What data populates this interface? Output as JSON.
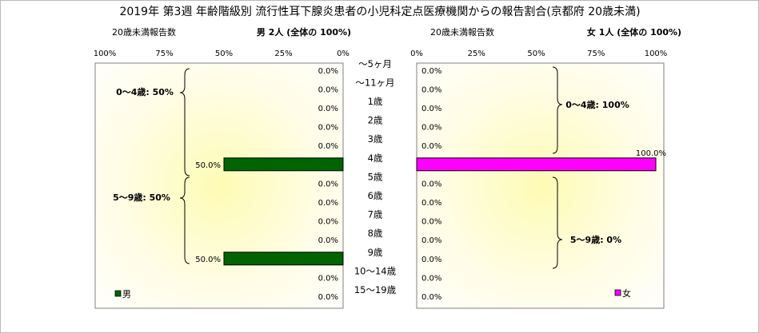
{
  "title": "2019年 第3週 年齢階級別 流行性耳下腺炎患者の小児科定点医療機関からの報告割合(京都府 20歳未満)",
  "left_panel": {
    "subtitle": "20歳未満報告数",
    "header": "男  2人  (全体の  100%)",
    "legend": "男",
    "group_labels": [
      "0〜4歳: 50%",
      "5〜9歳: 50%"
    ]
  },
  "right_panel": {
    "subtitle": "20歳未満報告数",
    "header": "女  1人  (全体の  100%)",
    "legend": "女",
    "group_labels": [
      "0〜4歳: 100%",
      "5〜9歳: 0%"
    ]
  },
  "colors": {
    "male": "#006400",
    "female": "#ff00ff",
    "plot_bg_center": "#fefbb4",
    "plot_bg_edge": "#ffffff",
    "bar_edge": "#000000"
  },
  "chart_data": {
    "type": "bar",
    "orientation": "horizontal",
    "categories": [
      "〜5ヶ月",
      "〜11ヶ月",
      "1歳",
      "2歳",
      "3歳",
      "4歳",
      "5歳",
      "6歳",
      "7歳",
      "8歳",
      "9歳",
      "10〜14歳",
      "15〜19歳"
    ],
    "x_ticks": [
      "100%",
      "75%",
      "50%",
      "25%",
      "0%"
    ],
    "x_ticks_right": [
      "0%",
      "25%",
      "50%",
      "75%",
      "100%"
    ],
    "xlim": [
      0,
      100
    ],
    "series": [
      {
        "name": "男",
        "values": [
          0,
          0,
          0,
          0,
          0,
          50,
          0,
          0,
          0,
          0,
          50,
          0,
          0
        ],
        "labels": [
          "0.0%",
          "0.0%",
          "0.0%",
          "0.0%",
          "0.0%",
          "50.0%",
          "0.0%",
          "0.0%",
          "0.0%",
          "0.0%",
          "50.0%",
          "0.0%",
          "0.0%"
        ]
      },
      {
        "name": "女",
        "values": [
          0,
          0,
          0,
          0,
          0,
          100,
          0,
          0,
          0,
          0,
          0,
          0,
          0
        ],
        "labels": [
          "0.0%",
          "0.0%",
          "0.0%",
          "0.0%",
          "0.0%",
          "100.0%",
          "0.0%",
          "0.0%",
          "0.0%",
          "0.0%",
          "0.0%",
          "0.0%",
          "0.0%"
        ]
      }
    ]
  }
}
